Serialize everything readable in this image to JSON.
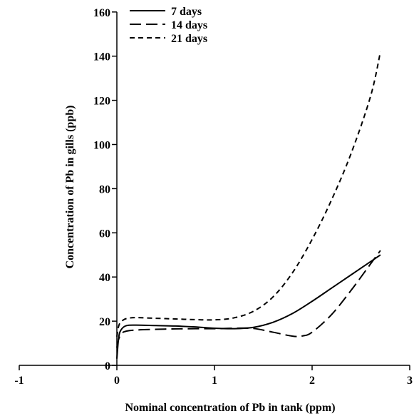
{
  "chart_data": {
    "type": "line",
    "xlabel": "Nominal concentration of Pb in tank (ppm)",
    "ylabel": "Concentration of Pb in gills (ppb)",
    "xlim": [
      -1,
      3
    ],
    "ylim": [
      0,
      160
    ],
    "x_ticks": [
      -1,
      0,
      1,
      2,
      3
    ],
    "y_ticks": [
      0,
      20,
      40,
      60,
      80,
      100,
      120,
      140,
      160
    ],
    "grid": false,
    "legend_position": "top-left",
    "series": [
      {
        "name": "7 days",
        "dash": "solid",
        "x": [
          0,
          0.02,
          0.05,
          0.1,
          0.2,
          0.4,
          0.6,
          0.8,
          1.0,
          1.2,
          1.4,
          1.6,
          1.8,
          2.0,
          2.2,
          2.4,
          2.6,
          2.7
        ],
        "y": [
          3,
          13,
          16.5,
          18,
          18.2,
          18,
          17.8,
          17.4,
          16.8,
          16.6,
          17.2,
          19.5,
          23.5,
          29,
          35,
          41,
          47,
          50
        ]
      },
      {
        "name": "14 days",
        "dash": "long-dash",
        "x": [
          0,
          0.02,
          0.05,
          0.1,
          0.2,
          0.4,
          0.6,
          0.8,
          1.0,
          1.2,
          1.4,
          1.6,
          1.8,
          1.9,
          2.0,
          2.2,
          2.4,
          2.6,
          2.7
        ],
        "y": [
          8,
          12,
          14.5,
          15.5,
          16,
          16.3,
          16.5,
          16.6,
          16.6,
          16.8,
          16.7,
          15,
          13.2,
          13.3,
          15,
          23,
          34,
          46,
          52
        ]
      },
      {
        "name": "21 days",
        "dash": "short-dash",
        "x": [
          0,
          0.02,
          0.05,
          0.1,
          0.2,
          0.4,
          0.6,
          0.8,
          1.0,
          1.2,
          1.4,
          1.6,
          1.8,
          2.0,
          2.2,
          2.4,
          2.6,
          2.7
        ],
        "y": [
          13,
          18,
          20,
          21.2,
          21.6,
          21.3,
          21,
          20.7,
          20.6,
          21.5,
          24.5,
          31,
          42,
          57,
          75,
          96,
          122,
          142
        ]
      }
    ]
  }
}
